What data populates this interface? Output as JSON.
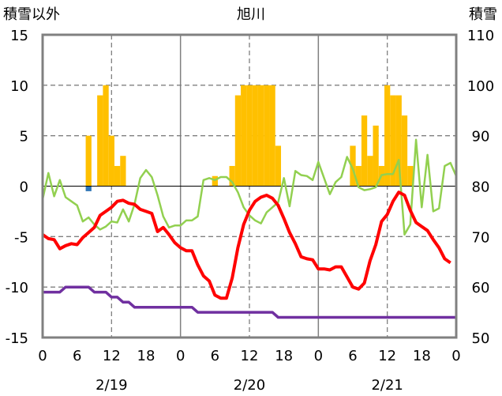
{
  "chart_data": {
    "type": "combo",
    "title": "旭川",
    "y_left_label": "積雪以外",
    "y_right_label": "積雪",
    "y_left_range": [
      -15,
      15
    ],
    "y_left_ticks": [
      "15",
      "10",
      "5",
      "0",
      "-5",
      "-10",
      "-15"
    ],
    "y_right_range": [
      50,
      110
    ],
    "y_right_ticks": [
      "110",
      "100",
      "90",
      "80",
      "70",
      "60",
      "50"
    ],
    "x_range": [
      0,
      72
    ],
    "x_ticks": [
      "0",
      "6",
      "12",
      "18",
      "0",
      "6",
      "12",
      "18",
      "0",
      "6",
      "12",
      "18",
      "0"
    ],
    "date_labels": [
      "2/19",
      "2/20",
      "2/21"
    ],
    "colors": {
      "temperature": "#ff0000",
      "wind": "#92d050",
      "snow_depth": "#7030a0",
      "precip_positive": "#ffc000",
      "precip_negative": "#2e75b6",
      "frame": "#808080"
    },
    "precipitation_bars": [
      {
        "h": 8,
        "v": 5
      },
      {
        "h": 8,
        "v": -0.5
      },
      {
        "h": 10,
        "v": 9
      },
      {
        "h": 11,
        "v": 10
      },
      {
        "h": 12,
        "v": 5
      },
      {
        "h": 13,
        "v": 2
      },
      {
        "h": 14,
        "v": 3
      },
      {
        "h": 30,
        "v": 1
      },
      {
        "h": 33,
        "v": 2
      },
      {
        "h": 34,
        "v": 9
      },
      {
        "h": 35,
        "v": 10
      },
      {
        "h": 36,
        "v": 10
      },
      {
        "h": 37,
        "v": 10
      },
      {
        "h": 38,
        "v": 10
      },
      {
        "h": 39,
        "v": 10
      },
      {
        "h": 40,
        "v": 10
      },
      {
        "h": 41,
        "v": 4
      },
      {
        "h": 54,
        "v": 4
      },
      {
        "h": 55,
        "v": 2
      },
      {
        "h": 56,
        "v": 7
      },
      {
        "h": 57,
        "v": 3
      },
      {
        "h": 58,
        "v": 6
      },
      {
        "h": 59,
        "v": 2
      },
      {
        "h": 60,
        "v": 10
      },
      {
        "h": 61,
        "v": 9
      },
      {
        "h": 62,
        "v": 9
      },
      {
        "h": 63,
        "v": 7
      },
      {
        "h": 64,
        "v": 2
      }
    ],
    "temperature": [
      [
        0,
        -4.8
      ],
      [
        1,
        -5.2
      ],
      [
        2,
        -5.3
      ],
      [
        3,
        -6.2
      ],
      [
        4,
        -5.9
      ],
      [
        5,
        -5.7
      ],
      [
        6,
        -5.8
      ],
      [
        7,
        -5.1
      ],
      [
        8,
        -4.6
      ],
      [
        9,
        -4.1
      ],
      [
        10,
        -2.9
      ],
      [
        11,
        -2.5
      ],
      [
        12,
        -2.1
      ],
      [
        13,
        -1.5
      ],
      [
        14,
        -1.4
      ],
      [
        15,
        -1.7
      ],
      [
        16,
        -1.8
      ],
      [
        17,
        -2.3
      ],
      [
        18,
        -2.5
      ],
      [
        19,
        -2.7
      ],
      [
        20,
        -4.5
      ],
      [
        21,
        -4.1
      ],
      [
        22,
        -4.8
      ],
      [
        23,
        -5.6
      ],
      [
        24,
        -6.1
      ],
      [
        25,
        -6.4
      ],
      [
        26,
        -6.4
      ],
      [
        27,
        -7.8
      ],
      [
        28,
        -8.9
      ],
      [
        29,
        -9.4
      ],
      [
        30,
        -10.8
      ],
      [
        31,
        -11.1
      ],
      [
        32,
        -11.1
      ],
      [
        33,
        -9.1
      ],
      [
        34,
        -6.1
      ],
      [
        35,
        -3.8
      ],
      [
        36,
        -2.4
      ],
      [
        37,
        -1.5
      ],
      [
        38,
        -1.1
      ],
      [
        39,
        -0.9
      ],
      [
        40,
        -1.2
      ],
      [
        41,
        -1.9
      ],
      [
        42,
        -3.2
      ],
      [
        43,
        -4.6
      ],
      [
        44,
        -5.7
      ],
      [
        45,
        -7.0
      ],
      [
        46,
        -7.2
      ],
      [
        47,
        -7.3
      ],
      [
        48,
        -8.2
      ],
      [
        49,
        -8.2
      ],
      [
        50,
        -8.3
      ],
      [
        51,
        -8.0
      ],
      [
        52,
        -8.0
      ],
      [
        53,
        -9.0
      ],
      [
        54,
        -10.0
      ],
      [
        55,
        -10.2
      ],
      [
        56,
        -9.6
      ],
      [
        57,
        -7.4
      ],
      [
        58,
        -5.8
      ],
      [
        59,
        -3.5
      ],
      [
        60,
        -2.8
      ],
      [
        61,
        -1.5
      ],
      [
        62,
        -0.6
      ],
      [
        63,
        -0.9
      ],
      [
        64,
        -2.4
      ],
      [
        65,
        -3.6
      ],
      [
        66,
        -4.0
      ],
      [
        67,
        -4.4
      ],
      [
        68,
        -5.3
      ],
      [
        69,
        -6.1
      ],
      [
        70,
        -7.2
      ],
      [
        71,
        -7.6
      ]
    ],
    "wind": [
      [
        0,
        -1.3
      ],
      [
        1,
        1.3
      ],
      [
        2,
        -1.0
      ],
      [
        3,
        0.6
      ],
      [
        4,
        -1.1
      ],
      [
        5,
        -1.5
      ],
      [
        6,
        -1.9
      ],
      [
        7,
        -3.5
      ],
      [
        8,
        -3.1
      ],
      [
        9,
        -3.8
      ],
      [
        10,
        -4.3
      ],
      [
        11,
        -4.0
      ],
      [
        12,
        -3.5
      ],
      [
        13,
        -3.6
      ],
      [
        14,
        -2.3
      ],
      [
        15,
        -3.5
      ],
      [
        16,
        -1.8
      ],
      [
        17,
        0.8
      ],
      [
        18,
        1.6
      ],
      [
        19,
        0.9
      ],
      [
        20,
        -0.9
      ],
      [
        21,
        -3.0
      ],
      [
        22,
        -4.1
      ],
      [
        23,
        -3.9
      ],
      [
        24,
        -3.9
      ],
      [
        25,
        -3.4
      ],
      [
        26,
        -3.4
      ],
      [
        27,
        -3.0
      ],
      [
        28,
        0.6
      ],
      [
        29,
        0.8
      ],
      [
        30,
        0.6
      ],
      [
        31,
        0.9
      ],
      [
        32,
        0.9
      ],
      [
        33,
        0.4
      ],
      [
        34,
        -0.6
      ],
      [
        35,
        -2.1
      ],
      [
        36,
        -2.9
      ],
      [
        37,
        -3.4
      ],
      [
        38,
        -3.7
      ],
      [
        39,
        -2.6
      ],
      [
        40,
        -2.1
      ],
      [
        41,
        -1.6
      ],
      [
        42,
        0.8
      ],
      [
        43,
        -2.0
      ],
      [
        44,
        1.5
      ],
      [
        45,
        1.1
      ],
      [
        46,
        1.0
      ],
      [
        47,
        0.6
      ],
      [
        48,
        2.4
      ],
      [
        49,
        0.8
      ],
      [
        50,
        -0.8
      ],
      [
        51,
        0.4
      ],
      [
        52,
        0.9
      ],
      [
        53,
        2.9
      ],
      [
        54,
        1.7
      ],
      [
        55,
        -0.1
      ],
      [
        56,
        -0.4
      ],
      [
        57,
        -0.3
      ],
      [
        58,
        -0.1
      ],
      [
        59,
        1.1
      ],
      [
        60,
        1.2
      ],
      [
        61,
        1.2
      ],
      [
        62,
        2.6
      ],
      [
        63,
        -4.8
      ],
      [
        64,
        -3.8
      ],
      [
        65,
        4.6
      ],
      [
        66,
        -2.1
      ],
      [
        67,
        3.1
      ],
      [
        68,
        -2.5
      ],
      [
        69,
        -2.2
      ],
      [
        70,
        2.0
      ],
      [
        71,
        2.3
      ],
      [
        72,
        1.0
      ]
    ],
    "snow_depth": [
      [
        0,
        59
      ],
      [
        3,
        59
      ],
      [
        4,
        60
      ],
      [
        8,
        60
      ],
      [
        9,
        59
      ],
      [
        11,
        59
      ],
      [
        12,
        58
      ],
      [
        13,
        58
      ],
      [
        14,
        57
      ],
      [
        15,
        57
      ],
      [
        16,
        56
      ],
      [
        26,
        56
      ],
      [
        27,
        55
      ],
      [
        40,
        55
      ],
      [
        41,
        54
      ],
      [
        72,
        54
      ]
    ]
  }
}
